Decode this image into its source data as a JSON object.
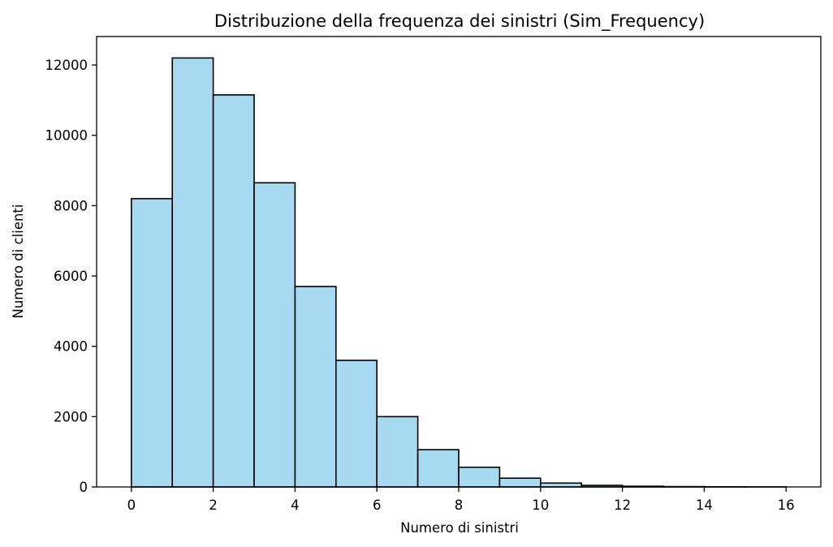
{
  "chart_data": {
    "type": "bar",
    "title": "Distribuzione della frequenza dei sinistri (Sim_Frequency)",
    "xlabel": "Numero di sinistri",
    "ylabel": "Numero di clienti",
    "bins": [
      {
        "start": 0,
        "end": 1,
        "value": 8200
      },
      {
        "start": 1,
        "end": 2,
        "value": 12200
      },
      {
        "start": 2,
        "end": 3,
        "value": 11150
      },
      {
        "start": 3,
        "end": 4,
        "value": 8650
      },
      {
        "start": 4,
        "end": 5,
        "value": 5700
      },
      {
        "start": 5,
        "end": 6,
        "value": 3600
      },
      {
        "start": 6,
        "end": 7,
        "value": 2000
      },
      {
        "start": 7,
        "end": 8,
        "value": 1060
      },
      {
        "start": 8,
        "end": 9,
        "value": 560
      },
      {
        "start": 9,
        "end": 10,
        "value": 250
      },
      {
        "start": 10,
        "end": 11,
        "value": 110
      },
      {
        "start": 11,
        "end": 12,
        "value": 45
      },
      {
        "start": 12,
        "end": 13,
        "value": 20
      },
      {
        "start": 13,
        "end": 14,
        "value": 10
      },
      {
        "start": 14,
        "end": 15,
        "value": 5
      },
      {
        "start": 15,
        "end": 16,
        "value": 2
      }
    ],
    "xticks": [
      0,
      2,
      4,
      6,
      8,
      10,
      12,
      14,
      16
    ],
    "yticks": [
      0,
      2000,
      4000,
      6000,
      8000,
      10000,
      12000
    ],
    "xlim": [
      -0.85,
      16.85
    ],
    "ylim": [
      0,
      12810
    ],
    "grid": false,
    "bar_color": "#a7daf0",
    "edge_color": "#000000"
  }
}
